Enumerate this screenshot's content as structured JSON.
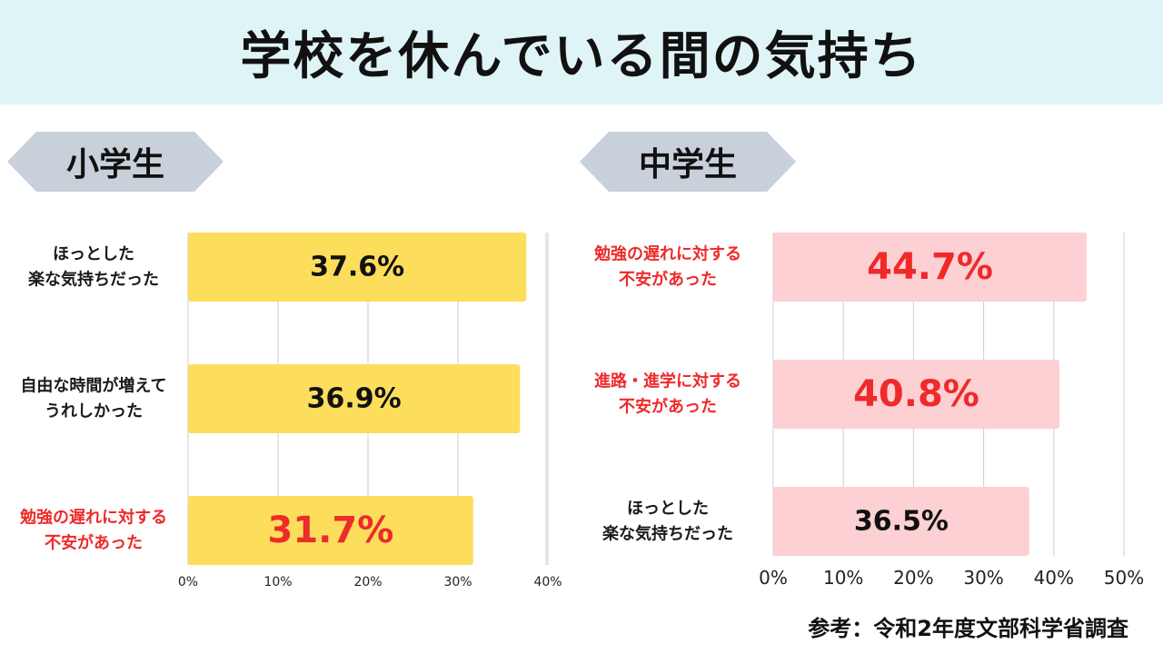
{
  "title": "学校を休んでいる間の気持ち",
  "panels": {
    "elementary_label": "小学生",
    "juniorhigh_label": "中学生"
  },
  "source": "参考：令和2年度文部科学省調査",
  "colors": {
    "title_band": "#dff4f6",
    "label_bg": "#c8d0d9",
    "bar_elementary": "#fcdd5c",
    "bar_juniorhigh": "#fdd0d3",
    "highlight_red": "#ee2a2a",
    "grid": "#cfcfcf"
  },
  "chart_data": [
    {
      "type": "bar",
      "orientation": "horizontal",
      "title": "小学生",
      "categories": [
        [
          "ほっとした",
          "楽な気持ちだった"
        ],
        [
          "自由な時間が増えて",
          "うれしかった"
        ],
        [
          "勉強の遅れに対する",
          "不安があった"
        ]
      ],
      "values": [
        37.6,
        36.9,
        31.7
      ],
      "data_labels": [
        "37.6%",
        "36.9%",
        "31.7%"
      ],
      "highlight": [
        false,
        false,
        true
      ],
      "xlim": [
        0,
        40
      ],
      "xticks": [
        "0%",
        "10%",
        "20%",
        "30%",
        "40%"
      ],
      "grid": true
    },
    {
      "type": "bar",
      "orientation": "horizontal",
      "title": "中学生",
      "categories": [
        [
          "勉強の遅れに対する",
          "不安があった"
        ],
        [
          "進路・進学に対する",
          "不安があった"
        ],
        [
          "ほっとした",
          "楽な気持ちだった"
        ]
      ],
      "values": [
        44.7,
        40.8,
        36.5
      ],
      "data_labels": [
        "44.7%",
        "40.8%",
        "36.5%"
      ],
      "highlight": [
        true,
        true,
        false
      ],
      "xlim": [
        0,
        50
      ],
      "xticks": [
        "0%",
        "10%",
        "20%",
        "30%",
        "40%",
        "50%"
      ],
      "grid": true
    }
  ]
}
